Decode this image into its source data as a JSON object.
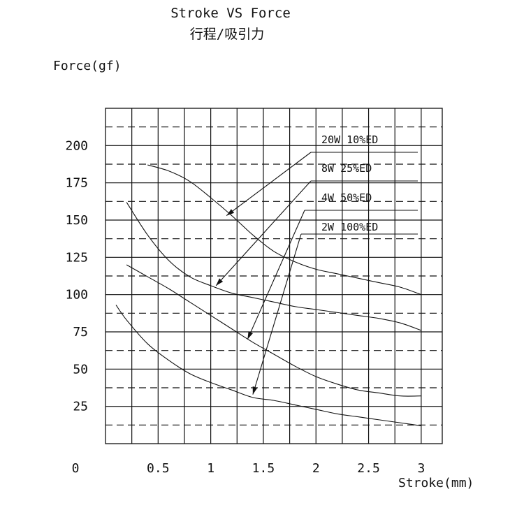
{
  "chart_data": {
    "type": "line",
    "title": "Stroke VS  Force",
    "subtitle": "行程/吸引力",
    "ylabel": "Force(gf)",
    "xlabel": "Stroke(mm)",
    "xlim": [
      0,
      3.2
    ],
    "ylim": [
      0,
      225
    ],
    "grid": true,
    "x_ticks": [
      {
        "value": 0.5,
        "label": "0.5"
      },
      {
        "value": 1,
        "label": "1"
      },
      {
        "value": 1.5,
        "label": "1.5"
      },
      {
        "value": 2,
        "label": "2"
      },
      {
        "value": 2.5,
        "label": "2.5"
      },
      {
        "value": 3,
        "label": "3"
      }
    ],
    "y_ticks": [
      {
        "value": 25,
        "label": "25"
      },
      {
        "value": 50,
        "label": "50"
      },
      {
        "value": 75,
        "label": "75"
      },
      {
        "value": 100,
        "label": "100"
      },
      {
        "value": 125,
        "label": "125"
      },
      {
        "value": 150,
        "label": "150"
      },
      {
        "value": 175,
        "label": "175"
      },
      {
        "value": 200,
        "label": "200"
      }
    ],
    "origin_label": "0",
    "series": [
      {
        "name": "20W  10%ED",
        "x": [
          0.4,
          0.6,
          0.8,
          1.0,
          1.2,
          1.4,
          1.6,
          1.8,
          2.0,
          2.2,
          2.4,
          2.6,
          2.8,
          3.0
        ],
        "y": [
          187,
          183,
          176,
          165,
          153,
          140,
          129,
          122,
          117,
          114,
          111,
          108,
          105,
          100
        ]
      },
      {
        "name": "8W 25%ED",
        "x": [
          0.2,
          0.4,
          0.6,
          0.8,
          1.0,
          1.2,
          1.4,
          1.6,
          1.8,
          2.0,
          2.2,
          2.4,
          2.6,
          2.8,
          3.0
        ],
        "y": [
          162,
          140,
          123,
          112,
          106,
          101,
          98,
          95,
          92,
          90,
          88,
          86,
          84,
          81,
          76
        ]
      },
      {
        "name": "4W  50%ED",
        "x": [
          0.2,
          0.4,
          0.6,
          0.8,
          1.0,
          1.2,
          1.4,
          1.6,
          1.8,
          2.0,
          2.2,
          2.4,
          2.6,
          2.8,
          3.0
        ],
        "y": [
          120,
          112,
          104,
          95,
          86,
          77,
          68,
          60,
          52,
          45,
          40,
          36,
          34,
          32,
          32
        ]
      },
      {
        "name": "2W 100%ED",
        "x": [
          0.1,
          0.2,
          0.4,
          0.6,
          0.8,
          1.0,
          1.2,
          1.4,
          1.6,
          1.8,
          2.0,
          2.2,
          2.4,
          2.6,
          2.8,
          3.0
        ],
        "y": [
          93,
          83,
          67,
          56,
          47,
          41,
          36,
          31,
          29,
          26,
          23,
          20,
          18,
          16,
          14,
          12
        ]
      }
    ],
    "annotations": [
      {
        "label": "20W  10%ED",
        "target_x": 1.15,
        "target_y": 153
      },
      {
        "label": "8W 25%ED",
        "target_x": 1.05,
        "target_y": 106
      },
      {
        "label": "4W  50%ED",
        "target_x": 1.35,
        "target_y": 70
      },
      {
        "label": "2W 100%ED",
        "target_x": 1.4,
        "target_y": 33
      }
    ]
  }
}
